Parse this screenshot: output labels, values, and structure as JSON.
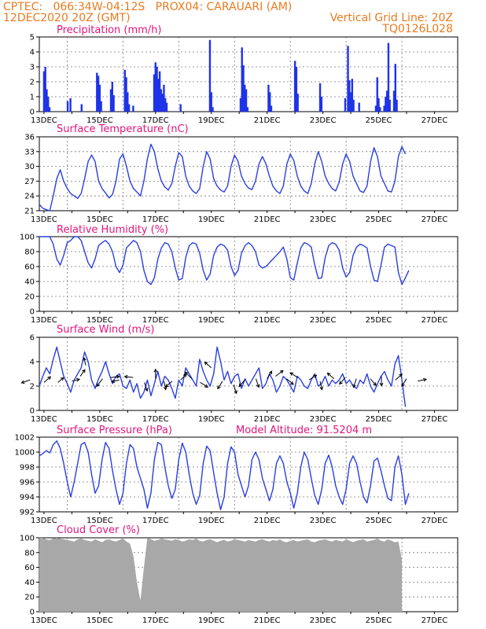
{
  "header": {
    "line1": "CPTEC:   066:34W-04:12S   PROX04: CARAUARI (AM)",
    "line2": "12DEC2020 20Z (GMT)",
    "vgrid": "Vertical Grid Line: 20Z",
    "code": "TQ0126L028"
  },
  "xticks": [
    "13DEC",
    "15DEC",
    "17DEC",
    "19DEC",
    "21DEC",
    "23DEC",
    "25DEC",
    "27DEC"
  ],
  "colors": {
    "line": "#2a3fe0",
    "bar": "#1f33e8",
    "cloud": "#a8a8a8",
    "title": "#e0167c",
    "header": "#e87a1f",
    "arrow": "#000000"
  },
  "chart_data": [
    {
      "type": "bar",
      "id": "precip",
      "title": "Precipitation (mm/h)",
      "ylim": [
        0,
        5
      ],
      "yticks": [
        0,
        1,
        2,
        3,
        4,
        5
      ],
      "time_step_hours": 1,
      "spikes": [
        [
          13.0,
          2.7
        ],
        [
          13.05,
          3.0
        ],
        [
          13.1,
          1.5
        ],
        [
          13.15,
          1.0
        ],
        [
          13.2,
          0.3
        ],
        [
          13.85,
          0.7
        ],
        [
          13.95,
          0.9
        ],
        [
          14.35,
          0.5
        ],
        [
          14.9,
          2.6
        ],
        [
          14.95,
          2.4
        ],
        [
          15.0,
          1.8
        ],
        [
          15.05,
          0.7
        ],
        [
          15.4,
          1.5
        ],
        [
          15.45,
          2.0
        ],
        [
          15.5,
          1.1
        ],
        [
          15.9,
          2.8
        ],
        [
          15.95,
          2.3
        ],
        [
          16.0,
          1.3
        ],
        [
          16.05,
          0.5
        ],
        [
          16.2,
          0.4
        ],
        [
          16.95,
          2.5
        ],
        [
          17.0,
          3.3
        ],
        [
          17.05,
          3.0
        ],
        [
          17.1,
          2.2
        ],
        [
          17.15,
          2.7
        ],
        [
          17.2,
          1.5
        ],
        [
          17.25,
          1.2
        ],
        [
          17.3,
          1.8
        ],
        [
          17.35,
          0.9
        ],
        [
          17.4,
          0.6
        ],
        [
          17.9,
          0.5
        ],
        [
          18.95,
          4.8
        ],
        [
          19.0,
          1.3
        ],
        [
          19.05,
          0.3
        ],
        [
          20.05,
          0.9
        ],
        [
          20.1,
          4.3
        ],
        [
          20.15,
          3.1
        ],
        [
          20.2,
          1.8
        ],
        [
          20.25,
          1.5
        ],
        [
          20.3,
          0.3
        ],
        [
          21.05,
          1.8
        ],
        [
          21.1,
          1.3
        ],
        [
          21.15,
          0.4
        ],
        [
          22.0,
          3.4
        ],
        [
          22.05,
          3.0
        ],
        [
          22.1,
          1.2
        ],
        [
          22.9,
          1.9
        ],
        [
          22.95,
          1.0
        ],
        [
          23.8,
          0.9
        ],
        [
          23.9,
          4.4
        ],
        [
          23.95,
          2.1
        ],
        [
          24.0,
          1.3
        ],
        [
          24.05,
          2.2
        ],
        [
          24.1,
          0.8
        ],
        [
          24.3,
          0.6
        ],
        [
          24.9,
          0.4
        ],
        [
          24.95,
          2.3
        ],
        [
          25.0,
          0.9
        ],
        [
          25.05,
          0.3
        ],
        [
          25.2,
          0.4
        ],
        [
          25.25,
          1.0
        ],
        [
          25.3,
          1.4
        ],
        [
          25.35,
          4.6
        ],
        [
          25.4,
          0.8
        ],
        [
          25.55,
          1.4
        ],
        [
          25.6,
          3.2
        ],
        [
          25.65,
          0.8
        ]
      ]
    },
    {
      "type": "line",
      "id": "temp",
      "title": "Surface Temperature (nC)",
      "ylim": [
        21,
        36
      ],
      "yticks": [
        21,
        24,
        27,
        30,
        33,
        36
      ],
      "time_step_hours": 3,
      "values": [
        22.3,
        21.5,
        21.2,
        21.0,
        24.0,
        27.5,
        29.3,
        27.0,
        25.5,
        24.5,
        24.0,
        23.5,
        24.5,
        27.5,
        31.0,
        32.3,
        31.0,
        27.0,
        25.5,
        24.6,
        23.6,
        24.3,
        27.0,
        31.5,
        32.5,
        30.0,
        27.0,
        25.5,
        24.8,
        24.0,
        27.0,
        31.5,
        34.5,
        33.0,
        29.5,
        27.0,
        25.8,
        25.2,
        26.5,
        30.0,
        32.8,
        32.0,
        28.0,
        26.0,
        25.0,
        24.5,
        25.5,
        30.0,
        33.0,
        31.5,
        27.5,
        26.0,
        25.2,
        24.8,
        26.0,
        30.0,
        32.3,
        31.0,
        28.0,
        26.5,
        25.6,
        25.3,
        27.0,
        30.5,
        32.0,
        30.5,
        28.0,
        26.0,
        25.0,
        24.5,
        26.0,
        30.5,
        32.5,
        31.2,
        28.0,
        26.0,
        25.0,
        24.5,
        26.5,
        30.5,
        33.0,
        31.0,
        28.0,
        26.5,
        25.5,
        25.0,
        26.8,
        30.5,
        32.5,
        31.0,
        28.0,
        26.5,
        25.0,
        24.7,
        26.0,
        31.0,
        33.8,
        32.0,
        28.0,
        26.5,
        25.0,
        24.8,
        27.0,
        32.0,
        34.0,
        32.5
      ]
    },
    {
      "type": "line",
      "id": "rh",
      "title": "Relative Humidity (%)",
      "ylim": [
        0,
        100
      ],
      "yticks": [
        0,
        20,
        40,
        60,
        80,
        100
      ],
      "time_step_hours": 3,
      "values": [
        100,
        100,
        100,
        100,
        90,
        70,
        62,
        75,
        92,
        95,
        100,
        100,
        95,
        80,
        65,
        58,
        70,
        88,
        92,
        95,
        90,
        80,
        60,
        52,
        62,
        85,
        90,
        95,
        92,
        80,
        55,
        40,
        36,
        45,
        70,
        85,
        92,
        90,
        80,
        58,
        42,
        44,
        72,
        88,
        92,
        90,
        78,
        55,
        42,
        50,
        75,
        86,
        90,
        88,
        82,
        60,
        48,
        55,
        78,
        88,
        92,
        88,
        80,
        62,
        58,
        60,
        65,
        70,
        75,
        80,
        86,
        70,
        45,
        42,
        65,
        85,
        92,
        90,
        86,
        62,
        44,
        45,
        72,
        88,
        92,
        90,
        82,
        58,
        46,
        52,
        75,
        86,
        90,
        88,
        85,
        60,
        42,
        40,
        62,
        86,
        90,
        88,
        86,
        52,
        36,
        45,
        55
      ]
    },
    {
      "type": "line",
      "id": "wind",
      "title": "Surface Wind (m/s)",
      "ylim": [
        0,
        6
      ],
      "yticks": [
        0,
        2,
        4,
        6
      ],
      "time_step_hours": 3,
      "values": [
        2.0,
        2.8,
        3.5,
        3.0,
        4.2,
        5.2,
        4.0,
        2.8,
        2.2,
        1.5,
        2.5,
        3.0,
        3.5,
        4.8,
        4.0,
        2.5,
        1.8,
        2.6,
        3.2,
        4.0,
        3.0,
        2.2,
        2.8,
        3.0,
        2.0,
        1.8,
        2.5,
        1.5,
        2.2,
        1.0,
        1.5,
        2.5,
        1.2,
        2.2,
        3.2,
        2.0,
        2.8,
        2.5,
        1.8,
        1.0,
        2.5,
        2.0,
        3.5,
        3.0,
        2.5,
        2.0,
        4.2,
        3.2,
        2.5,
        2.0,
        3.0,
        5.2,
        4.0,
        2.5,
        3.2,
        2.2,
        2.8,
        3.0,
        1.8,
        2.6,
        2.0,
        2.5,
        3.0,
        3.5,
        1.8,
        2.2,
        3.0,
        2.5,
        1.5,
        2.0,
        2.8,
        2.5,
        2.0,
        1.5,
        2.8,
        2.5,
        2.0,
        1.8,
        2.5,
        3.0,
        2.0,
        2.2,
        2.8,
        2.0,
        2.5,
        2.2,
        2.5,
        3.0,
        2.2,
        2.5,
        2.0,
        1.8,
        2.5,
        2.2,
        3.0,
        2.0,
        1.5,
        2.2,
        2.8,
        3.2,
        2.5,
        2.0,
        3.8,
        4.5,
        2.5,
        0.3
      ],
      "arrows": [
        [
          12.5,
          2.5,
          -0.9,
          -0.3
        ],
        [
          13.0,
          2.3,
          0.7,
          0.6
        ],
        [
          13.5,
          2.3,
          0.6,
          0.5
        ],
        [
          14.0,
          2.4,
          0.8,
          0.2
        ],
        [
          14.3,
          2.8,
          0.5,
          0.7
        ],
        [
          14.5,
          3.7,
          -0.2,
          0.8
        ],
        [
          15.1,
          2.6,
          -0.6,
          -0.8
        ],
        [
          15.4,
          2.7,
          0.9,
          0.1
        ],
        [
          15.7,
          2.5,
          -0.8,
          -0.2
        ],
        [
          16.2,
          2.7,
          -0.9,
          0.1
        ],
        [
          16.6,
          2.3,
          0.3,
          -0.9
        ],
        [
          17.0,
          2.6,
          0.0,
          1.0
        ],
        [
          17.3,
          2.4,
          0.2,
          -0.9
        ],
        [
          17.6,
          2.4,
          -0.7,
          -0.6
        ],
        [
          17.9,
          2.5,
          0.6,
          0.6
        ],
        [
          18.3,
          2.6,
          -0.7,
          0.7
        ],
        [
          18.6,
          2.3,
          0.8,
          -0.5
        ],
        [
          19.0,
          3.5,
          -0.7,
          0.6
        ],
        [
          19.4,
          2.4,
          -0.5,
          -0.8
        ],
        [
          19.8,
          2.1,
          0.3,
          -0.9
        ],
        [
          20.2,
          2.5,
          -0.6,
          -0.7
        ],
        [
          20.6,
          2.6,
          0.3,
          -0.9
        ],
        [
          21.0,
          2.6,
          0.5,
          0.8
        ],
        [
          21.3,
          2.8,
          0.8,
          0.6
        ],
        [
          21.7,
          2.6,
          0.7,
          -0.6
        ],
        [
          22.1,
          2.7,
          -0.8,
          0.5
        ],
        [
          22.5,
          2.5,
          0.8,
          0.5
        ],
        [
          22.9,
          2.4,
          0.2,
          -0.9
        ],
        [
          23.4,
          2.6,
          -0.7,
          0.6
        ],
        [
          23.8,
          2.7,
          -0.6,
          -0.7
        ],
        [
          24.2,
          2.6,
          -0.3,
          -0.9
        ],
        [
          24.7,
          2.6,
          0.6,
          -0.7
        ],
        [
          25.1,
          2.8,
          0.0,
          -1.0
        ],
        [
          25.6,
          2.5,
          0.7,
          0.6
        ],
        [
          26.0,
          2.6,
          -0.5,
          -0.8
        ],
        [
          26.4,
          2.4,
          0.9,
          0.2
        ]
      ]
    },
    {
      "type": "line",
      "id": "pres",
      "title": "Surface Pressure (hPa)",
      "subtitle": "Model Altitude: 91.5204 m",
      "ylim": [
        992,
        1002
      ],
      "yticks": [
        992,
        994,
        996,
        998,
        1000,
        1002
      ],
      "time_step_hours": 3,
      "values": [
        999.5,
        999.8,
        1000.2,
        999.9,
        1001.0,
        1001.5,
        1000.5,
        998.5,
        996.0,
        994.0,
        996.0,
        998.5,
        1001.0,
        1001.3,
        1000.0,
        997.0,
        994.5,
        995.5,
        999.0,
        1001.3,
        1000.5,
        997.5,
        995.0,
        993.0,
        994.5,
        998.5,
        1001.0,
        1000.5,
        998.0,
        996.5,
        995.0,
        992.5,
        994.5,
        999.0,
        1001.3,
        1001.0,
        998.0,
        995.5,
        993.8,
        995.0,
        999.0,
        1001.2,
        1000.0,
        997.0,
        994.5,
        993.0,
        994.2,
        998.5,
        1000.8,
        1000.2,
        997.2,
        994.5,
        992.3,
        994.0,
        998.5,
        1000.7,
        1000.0,
        997.0,
        995.5,
        994.0,
        995.5,
        999.0,
        1000.0,
        999.0,
        996.5,
        995.0,
        993.5,
        995.0,
        998.5,
        999.5,
        998.5,
        996.0,
        994.5,
        992.5,
        994.5,
        998.0,
        1000.0,
        999.0,
        996.5,
        994.2,
        993.0,
        995.0,
        998.5,
        999.6,
        998.0,
        995.5,
        994.0,
        993.0,
        995.0,
        998.5,
        999.5,
        998.5,
        996.0,
        994.0,
        993.2,
        995.5,
        998.8,
        999.2,
        997.5,
        995.5,
        993.8,
        993.5,
        998.0,
        999.5,
        997.0,
        993.0,
        994.5
      ]
    },
    {
      "type": "area",
      "id": "cloud",
      "title": "Cloud Cover (%)",
      "ylim": [
        0,
        100
      ],
      "yticks": [
        0,
        20,
        40,
        60,
        80,
        100
      ],
      "time_step_hours": 3,
      "values": [
        100,
        100,
        98,
        97,
        99,
        100,
        99,
        98,
        97,
        96,
        95,
        98,
        99,
        97,
        96,
        95,
        98,
        96,
        94,
        97,
        98,
        96,
        95,
        97,
        99,
        95,
        92,
        75,
        40,
        15,
        60,
        100,
        98,
        96,
        97,
        99,
        98,
        97,
        96,
        98,
        97,
        95,
        96,
        98,
        97,
        99,
        96,
        95,
        97,
        98,
        96,
        94,
        96,
        97,
        95,
        96,
        98,
        97,
        96,
        95,
        97,
        96,
        95,
        97,
        98,
        96,
        95,
        97,
        96,
        98,
        95,
        94,
        96,
        97,
        95,
        96,
        97,
        98,
        95,
        94,
        96,
        97,
        98,
        96,
        95,
        97,
        96,
        95,
        98,
        96,
        94,
        96,
        97,
        98,
        95,
        96,
        97,
        99,
        96,
        95,
        98,
        96,
        94,
        95,
        70
      ]
    }
  ]
}
